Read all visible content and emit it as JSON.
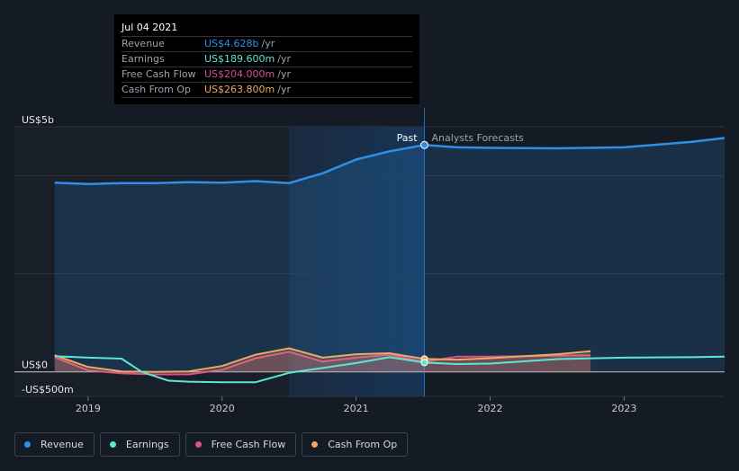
{
  "tooltip": {
    "date": "Jul 04 2021",
    "rows": [
      {
        "label": "Revenue",
        "value": "US$4.628b",
        "unit": "/yr",
        "color": "#2f8fe6"
      },
      {
        "label": "Earnings",
        "value": "US$189.600m",
        "unit": "/yr",
        "color": "#5ee6d0"
      },
      {
        "label": "Free Cash Flow",
        "value": "US$204.000m",
        "unit": "/yr",
        "color": "#d9508c"
      },
      {
        "label": "Cash From Op",
        "value": "US$263.800m",
        "unit": "/yr",
        "color": "#f0a860"
      }
    ]
  },
  "labels": {
    "past": "Past",
    "forecast": "Analysts Forecasts"
  },
  "chart_data": {
    "type": "area",
    "y_tick_labels": [
      "US$5b",
      "US$0",
      "-US$500m"
    ],
    "ylim": [
      -500,
      5000
    ],
    "x_tick_labels": [
      "2019",
      "2020",
      "2021",
      "2022",
      "2023"
    ],
    "xlim": [
      2018.45,
      2023.75
    ],
    "past_forecast_split": 2021.51,
    "highlight_range": [
      2020.5,
      2021.51
    ],
    "series": [
      {
        "name": "Revenue",
        "color": "#2f8fe6",
        "area": true,
        "x": [
          2018.75,
          2019.0,
          2019.25,
          2019.5,
          2019.75,
          2020.0,
          2020.25,
          2020.5,
          2020.75,
          2021.0,
          2021.25,
          2021.51,
          2021.75,
          2022.0,
          2022.5,
          2023.0,
          2023.5,
          2023.75
        ],
        "y": [
          3860,
          3830,
          3850,
          3850,
          3870,
          3860,
          3890,
          3850,
          4050,
          4330,
          4500,
          4628,
          4580,
          4570,
          4560,
          4580,
          4690,
          4770
        ]
      },
      {
        "name": "Earnings",
        "color": "#5ee6d0",
        "area": false,
        "x": [
          2018.75,
          2019.0,
          2019.25,
          2019.4,
          2019.6,
          2019.75,
          2020.0,
          2020.25,
          2020.5,
          2020.75,
          2021.0,
          2021.25,
          2021.51,
          2021.75,
          2022.0,
          2022.5,
          2023.0,
          2023.5,
          2023.75
        ],
        "y": [
          320,
          290,
          270,
          0,
          -180,
          -200,
          -210,
          -210,
          -20,
          80,
          180,
          300,
          190,
          160,
          170,
          260,
          290,
          300,
          310
        ]
      },
      {
        "name": "Free Cash Flow",
        "color": "#d9508c",
        "area": true,
        "x": [
          2018.75,
          2019.0,
          2019.25,
          2019.5,
          2019.75,
          2020.0,
          2020.25,
          2020.5,
          2020.75,
          2021.0,
          2021.25,
          2021.51,
          2021.75,
          2022.0,
          2022.5,
          2022.75
        ],
        "y": [
          300,
          30,
          -30,
          -50,
          -50,
          40,
          280,
          410,
          210,
          290,
          350,
          204,
          310,
          310,
          330,
          340
        ]
      },
      {
        "name": "Cash From Op",
        "color": "#f0a860",
        "area": true,
        "x": [
          2018.75,
          2019.0,
          2019.25,
          2019.5,
          2019.75,
          2020.0,
          2020.25,
          2020.5,
          2020.75,
          2021.0,
          2021.25,
          2021.51,
          2021.75,
          2022.0,
          2022.5,
          2022.75
        ],
        "y": [
          340,
          100,
          10,
          0,
          10,
          120,
          350,
          480,
          290,
          360,
          380,
          264,
          250,
          280,
          360,
          420
        ]
      }
    ]
  },
  "legend": [
    {
      "label": "Revenue",
      "color": "#2f8fe6"
    },
    {
      "label": "Earnings",
      "color": "#5ee6d0"
    },
    {
      "label": "Free Cash Flow",
      "color": "#d9508c"
    },
    {
      "label": "Cash From Op",
      "color": "#f0a860"
    }
  ]
}
